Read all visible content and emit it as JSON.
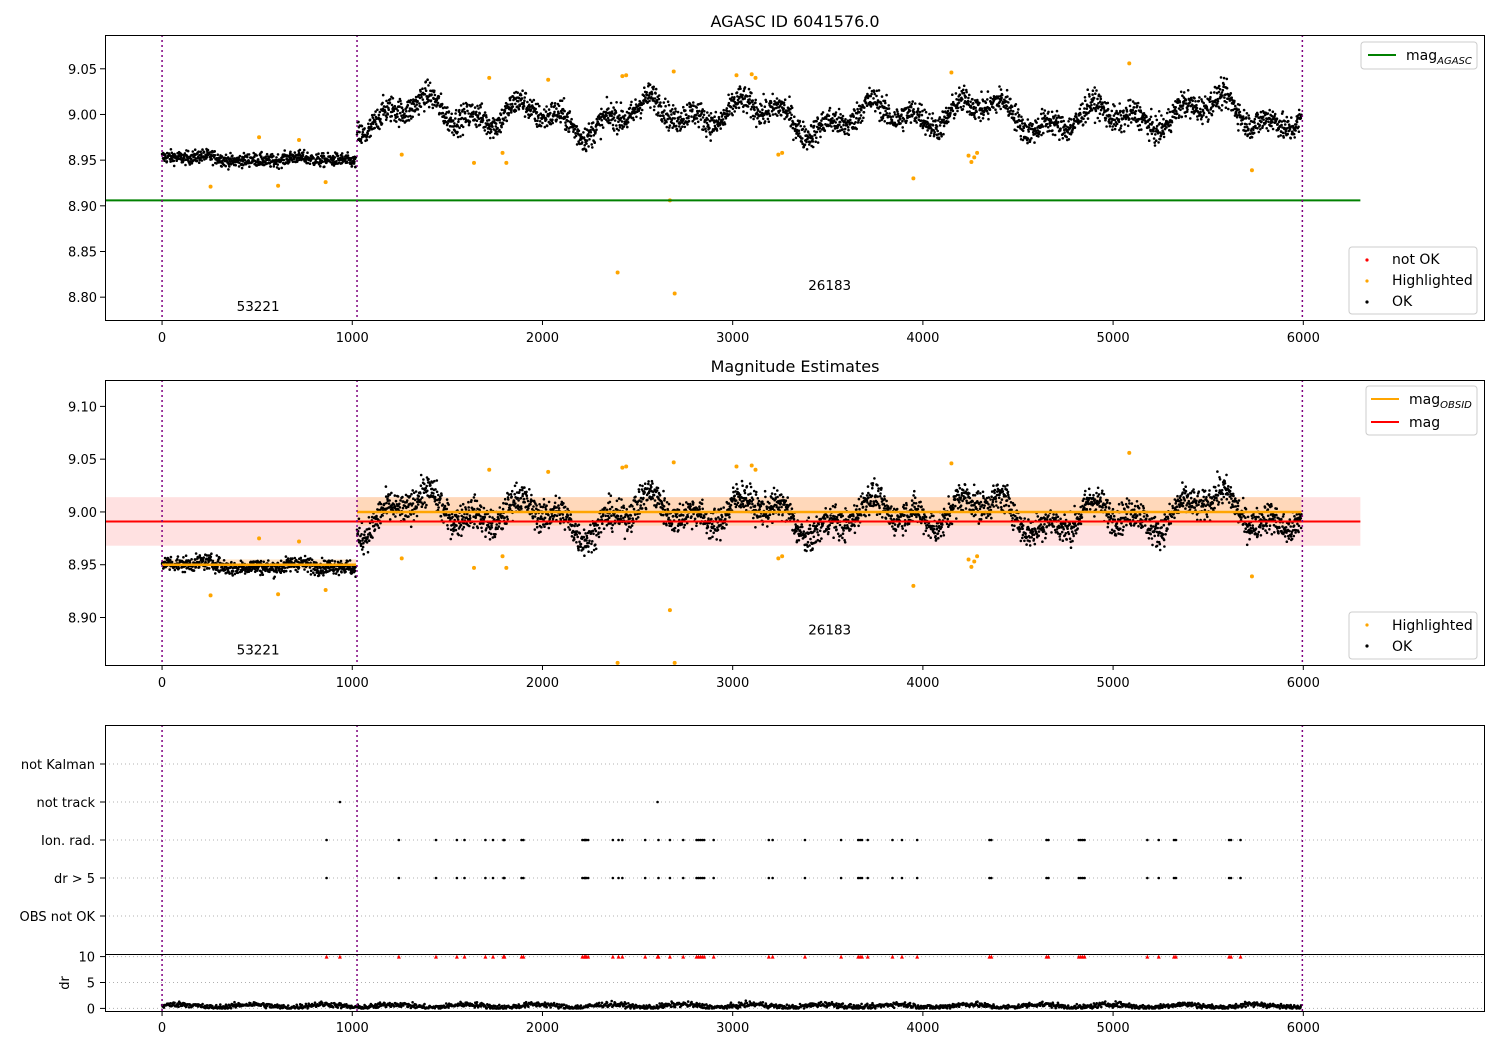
{
  "colors": {
    "ok": "#000000",
    "highlighted": "#ffa500",
    "not_ok": "#ff0000",
    "agasc_line": "#008000",
    "obsid_line": "#ffa500",
    "mag_line": "#ff0000",
    "mag_band": "#ffc8c8",
    "obsid_band": "#ffd2a0",
    "obs_boundary": "#800080",
    "grid": "#b0b0b0"
  },
  "chart_data": [
    {
      "type": "scatter",
      "title": "AGASC ID 6041576.0",
      "xlim": [
        -300,
        6950
      ],
      "ylim": [
        8.775,
        9.087
      ],
      "x_ticks": [
        0,
        1000,
        2000,
        3000,
        4000,
        5000,
        6000
      ],
      "x_tick_labels": [
        "0",
        "1000",
        "2000",
        "3000",
        "4000",
        "5000",
        "6000"
      ],
      "y_ticks": [
        8.8,
        8.85,
        8.9,
        8.95,
        9.0,
        9.05
      ],
      "y_tick_labels": [
        "8.80",
        "8.85",
        "8.90",
        "8.95",
        "9.00",
        "9.05"
      ],
      "obs_boundaries": [
        0,
        1025,
        5995
      ],
      "obs_labels": [
        {
          "text": "53221",
          "x": 505,
          "y": 8.785
        },
        {
          "text": "26183",
          "x": 3510,
          "y": 8.808
        }
      ],
      "hlines": [
        {
          "name": "mag_AGASC",
          "y": 8.906,
          "x": [
            -300,
            6300
          ]
        }
      ],
      "ok_segments": [
        {
          "x0": 0,
          "x1": 1020,
          "mean": 8.951,
          "spread": 0.006
        },
        {
          "x0": 1025,
          "x1": 5990,
          "mean": 8.999,
          "spread": 0.012
        }
      ],
      "highlighted": [
        [
          255,
          8.921
        ],
        [
          510,
          8.975
        ],
        [
          610,
          8.922
        ],
        [
          720,
          8.972
        ],
        [
          860,
          8.926
        ],
        [
          1260,
          8.956
        ],
        [
          1640,
          8.947
        ],
        [
          1720,
          9.04
        ],
        [
          1790,
          8.958
        ],
        [
          1810,
          8.947
        ],
        [
          2030,
          9.038
        ],
        [
          2395,
          8.827
        ],
        [
          2420,
          9.042
        ],
        [
          2440,
          9.043
        ],
        [
          2670,
          8.906
        ],
        [
          2690,
          9.047
        ],
        [
          2695,
          8.804
        ],
        [
          3020,
          9.043
        ],
        [
          3100,
          9.044
        ],
        [
          3120,
          9.04
        ],
        [
          3240,
          8.956
        ],
        [
          3260,
          8.958
        ],
        [
          3950,
          8.93
        ],
        [
          4150,
          9.046
        ],
        [
          4240,
          8.955
        ],
        [
          4255,
          8.948
        ],
        [
          4270,
          8.953
        ],
        [
          4285,
          8.958
        ],
        [
          5085,
          9.056
        ],
        [
          5730,
          8.939
        ]
      ],
      "legend_top": [
        {
          "label": "mag",
          "sub": "AGASC",
          "color": "#008000"
        }
      ],
      "legend_bottom": [
        {
          "label": "not OK",
          "color": "#ff0000"
        },
        {
          "label": "Highlighted",
          "color": "#ffa500"
        },
        {
          "label": "OK",
          "color": "#000000"
        }
      ]
    },
    {
      "type": "scatter",
      "title": "Magnitude Estimates",
      "xlim": [
        -300,
        6950
      ],
      "ylim": [
        8.855,
        9.125
      ],
      "x_ticks": [
        0,
        1000,
        2000,
        3000,
        4000,
        5000,
        6000
      ],
      "x_tick_labels": [
        "0",
        "1000",
        "2000",
        "3000",
        "4000",
        "5000",
        "6000"
      ],
      "y_ticks": [
        8.9,
        8.95,
        9.0,
        9.05,
        9.1
      ],
      "y_tick_labels": [
        "8.90",
        "8.95",
        "9.00",
        "9.05",
        "9.10"
      ],
      "obs_boundaries": [
        0,
        1025,
        5995
      ],
      "obs_labels": [
        {
          "text": "53221",
          "x": 505,
          "y": 8.865
        },
        {
          "text": "26183",
          "x": 3510,
          "y": 8.884
        }
      ],
      "mag": 8.991,
      "mag_band": [
        8.968,
        9.014
      ],
      "obsid_segments": [
        {
          "x0": 0,
          "x1": 1020,
          "mag": 8.95,
          "band": [
            8.946,
            8.955
          ]
        },
        {
          "x0": 1025,
          "x1": 5990,
          "mag": 9.0,
          "band": [
            8.987,
            9.014
          ]
        }
      ],
      "ok_segments": [
        {
          "x0": 0,
          "x1": 1020,
          "mean": 8.949,
          "spread": 0.006
        },
        {
          "x0": 1025,
          "x1": 5990,
          "mean": 8.998,
          "spread": 0.012
        }
      ],
      "highlighted": [
        [
          255,
          8.921
        ],
        [
          510,
          8.975
        ],
        [
          610,
          8.922
        ],
        [
          720,
          8.972
        ],
        [
          860,
          8.926
        ],
        [
          1260,
          8.956
        ],
        [
          1640,
          8.947
        ],
        [
          1720,
          9.04
        ],
        [
          1790,
          8.958
        ],
        [
          1810,
          8.947
        ],
        [
          2030,
          9.038
        ],
        [
          2395,
          8.857
        ],
        [
          2420,
          9.042
        ],
        [
          2440,
          9.043
        ],
        [
          2670,
          8.907
        ],
        [
          2690,
          9.047
        ],
        [
          2695,
          8.857
        ],
        [
          3020,
          9.043
        ],
        [
          3100,
          9.044
        ],
        [
          3120,
          9.04
        ],
        [
          3240,
          8.956
        ],
        [
          3260,
          8.958
        ],
        [
          3950,
          8.93
        ],
        [
          4150,
          9.046
        ],
        [
          4240,
          8.955
        ],
        [
          4255,
          8.948
        ],
        [
          4270,
          8.953
        ],
        [
          4285,
          8.958
        ],
        [
          5085,
          9.056
        ],
        [
          5730,
          8.939
        ]
      ],
      "legend_top": [
        {
          "label": "mag",
          "sub": "OBSID",
          "color": "#ffa500"
        },
        {
          "label": "mag",
          "sub": "",
          "color": "#ff0000"
        }
      ],
      "legend_bottom": [
        {
          "label": "Highlighted",
          "color": "#ffa500"
        },
        {
          "label": "OK",
          "color": "#000000"
        }
      ]
    },
    {
      "type": "scatter",
      "xlim": [
        -300,
        6950
      ],
      "x_ticks": [
        0,
        1000,
        2000,
        3000,
        4000,
        5000,
        6000
      ],
      "x_tick_labels": [
        "0",
        "1000",
        "2000",
        "3000",
        "4000",
        "5000",
        "6000"
      ],
      "flag_categories": [
        "not Kalman",
        "not track",
        "Ion. rad.",
        "dr > 5",
        "OBS not OK"
      ],
      "obs_boundaries": [
        0,
        1025,
        5995
      ],
      "flags": {
        "not track": [
          935,
          2605
        ],
        "Ion. rad.": [
          865,
          1245,
          1440,
          1550,
          1590,
          1700,
          1740,
          1795,
          1800,
          1890,
          1900,
          2210,
          2220,
          2225,
          2230,
          2240,
          2370,
          2400,
          2420,
          2540,
          2610,
          2670,
          2740,
          2810,
          2820,
          2830,
          2840,
          2850,
          2900,
          3190,
          3210,
          3380,
          3570,
          3660,
          3670,
          3680,
          3710,
          3840,
          3890,
          3970,
          4350,
          4360,
          4650,
          4660,
          4820,
          4830,
          4840,
          4850,
          5180,
          5240,
          5320,
          5330,
          5610,
          5620,
          5670
        ],
        "dr > 5": [
          865,
          1245,
          1440,
          1550,
          1590,
          1700,
          1740,
          1795,
          1800,
          1890,
          1900,
          2210,
          2220,
          2225,
          2230,
          2240,
          2370,
          2400,
          2420,
          2540,
          2610,
          2670,
          2740,
          2810,
          2820,
          2830,
          2840,
          2850,
          2900,
          3190,
          3210,
          3380,
          3570,
          3660,
          3670,
          3680,
          3710,
          3840,
          3890,
          3970,
          4350,
          4360,
          4650,
          4660,
          4820,
          4830,
          4840,
          4850,
          5180,
          5240,
          5320,
          5330,
          5610,
          5620,
          5670
        ]
      },
      "dr": {
        "ylabel": "dr",
        "ylim": [
          -0.5,
          10.5
        ],
        "y_ticks": [
          0,
          5,
          10
        ],
        "y_tick_labels": [
          "0",
          "5",
          "10"
        ],
        "baseline_mean": 0.5,
        "clipped_value": 10,
        "clipped_x": [
          865,
          935,
          1245,
          1440,
          1550,
          1590,
          1700,
          1740,
          1795,
          1800,
          1890,
          1900,
          2210,
          2220,
          2225,
          2230,
          2240,
          2370,
          2400,
          2420,
          2540,
          2605,
          2610,
          2670,
          2740,
          2810,
          2820,
          2830,
          2840,
          2850,
          2900,
          3190,
          3210,
          3380,
          3570,
          3660,
          3670,
          3680,
          3710,
          3840,
          3890,
          3970,
          4350,
          4360,
          4650,
          4660,
          4820,
          4830,
          4840,
          4850,
          5180,
          5240,
          5320,
          5330,
          5610,
          5620,
          5670
        ]
      }
    }
  ]
}
